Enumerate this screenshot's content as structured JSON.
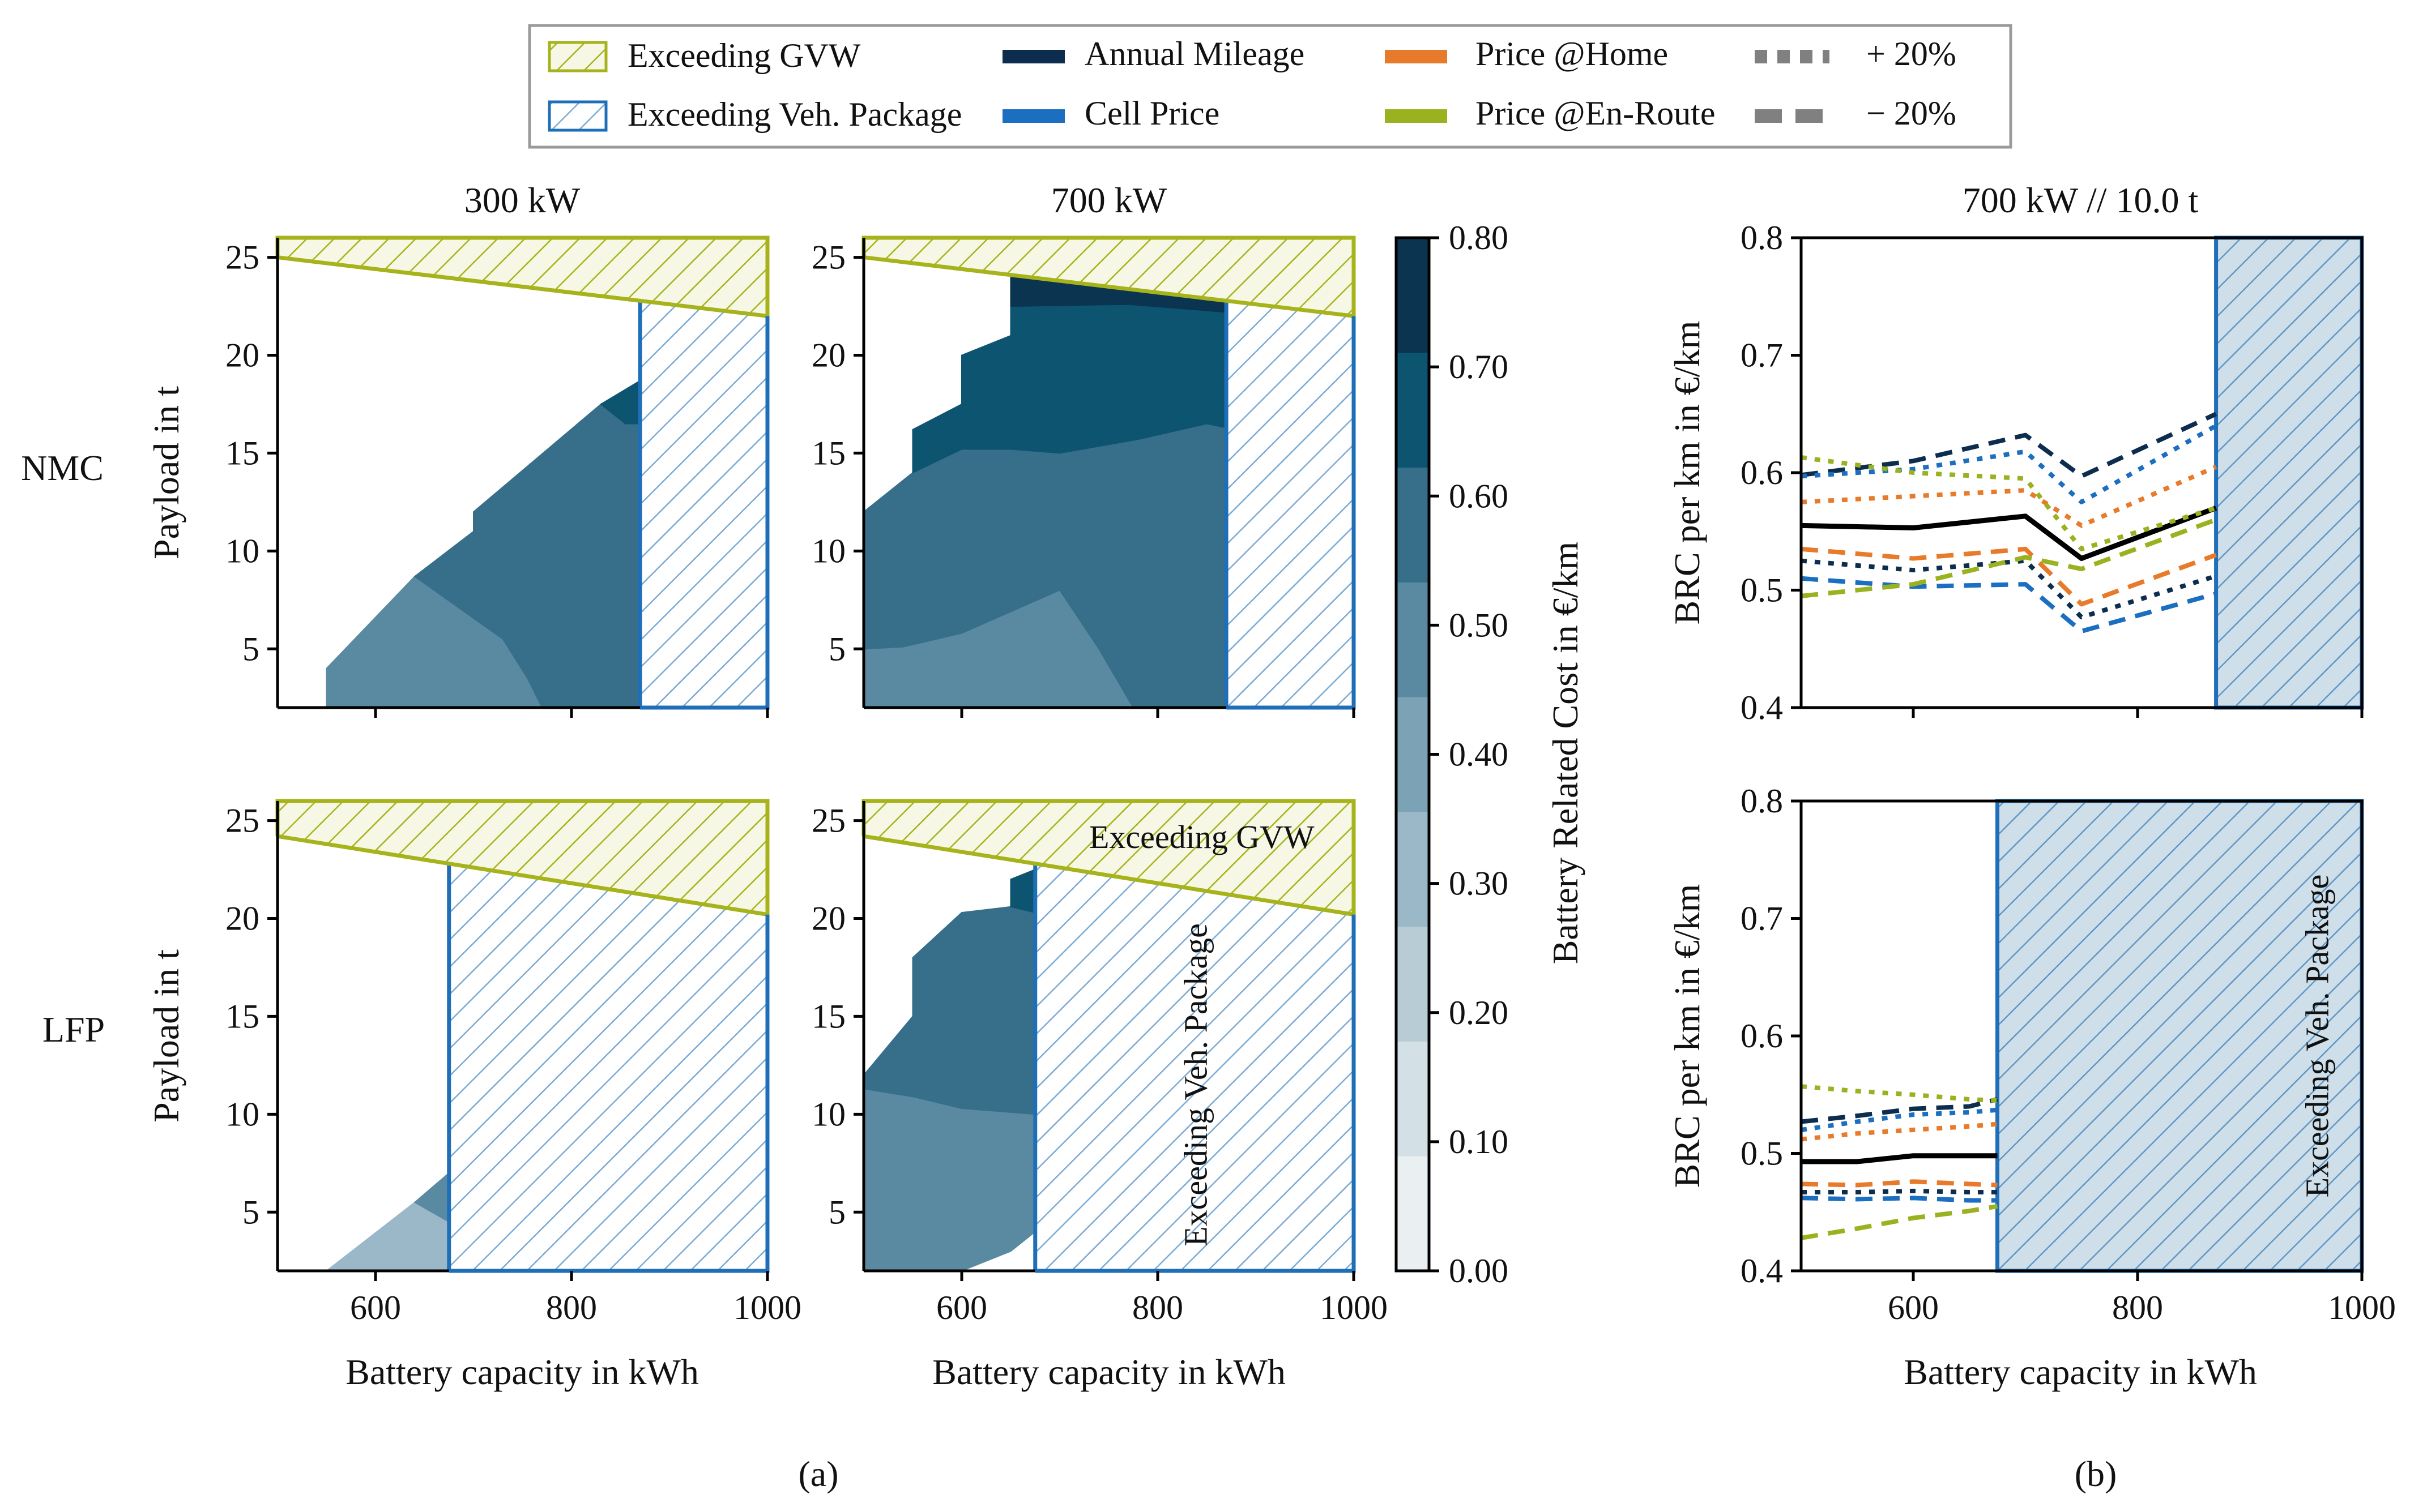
{
  "chart_data": {
    "type": "multi-panel contour + line",
    "legend": {
      "hatch_entries": [
        {
          "label": "Exceeding GVW",
          "color": "#a6b31b"
        },
        {
          "label": "Exceeding Veh. Package",
          "color": "#1f6fb8"
        }
      ],
      "color_entries": [
        {
          "label": "Annual Mileage",
          "color": "#0d2d4e"
        },
        {
          "label": "Cell Price",
          "color": "#1c6fc0"
        },
        {
          "label": "Price @Home",
          "color": "#e87a2b"
        },
        {
          "label": "Price @En-Route",
          "color": "#9ab21f"
        }
      ],
      "style_entries": [
        {
          "label": "+ 20%",
          "style": "dotted"
        },
        {
          "label": "− 20%",
          "style": "dashed"
        }
      ]
    },
    "row_labels": [
      "NMC",
      "LFP"
    ],
    "sublabels": [
      "(a)",
      "(b)"
    ],
    "contour_panels": [
      {
        "title": "300 kW",
        "chemistry": "NMC",
        "gvw_line_payload": [
          25.0,
          22.0
        ],
        "veh_package_limit_kwh": 870,
        "regions": [
          {
            "level": 0.45,
            "points": [
              [
                550,
                2
              ],
              [
                550,
                4
              ],
              [
                640,
                8.7
              ],
              [
                730,
                5.5
              ],
              [
                755,
                3.5
              ],
              [
                770,
                2
              ]
            ]
          },
          {
            "level": 0.55,
            "points": [
              [
                640,
                8.7
              ],
              [
                700,
                11
              ],
              [
                700,
                12
              ],
              [
                830,
                17.5
              ],
              [
                855,
                16.5
              ],
              [
                870,
                16.5
              ],
              [
                870,
                2
              ],
              [
                770,
                2
              ],
              [
                755,
                3.5
              ],
              [
                730,
                5.5
              ]
            ]
          },
          {
            "level": 0.65,
            "points": [
              [
                830,
                17.5
              ],
              [
                870,
                18.7
              ],
              [
                870,
                16.5
              ],
              [
                855,
                16.5
              ]
            ]
          }
        ]
      },
      {
        "title": "700 kW",
        "chemistry": "NMC",
        "gvw_line_payload": [
          25.0,
          22.0
        ],
        "veh_package_limit_kwh": 870,
        "regions": [
          {
            "level": 0.45,
            "points": [
              [
                500,
                2
              ],
              [
                500,
                5
              ],
              [
                540,
                5.1
              ],
              [
                600,
                5.8
              ],
              [
                700,
                8
              ],
              [
                740,
                5
              ],
              [
                775,
                2
              ]
            ]
          },
          {
            "level": 0.55,
            "points": [
              [
                500,
                5
              ],
              [
                500,
                12
              ],
              [
                550,
                14
              ],
              [
                600,
                15.2
              ],
              [
                650,
                15.2
              ],
              [
                700,
                15
              ],
              [
                780,
                15.7
              ],
              [
                850,
                16.5
              ],
              [
                870,
                16.3
              ],
              [
                870,
                2
              ],
              [
                775,
                2
              ],
              [
                740,
                5
              ],
              [
                700,
                8
              ],
              [
                600,
                5.8
              ],
              [
                540,
                5.1
              ]
            ]
          },
          {
            "level": 0.65,
            "points": [
              [
                550,
                14
              ],
              [
                550,
                16.2
              ],
              [
                600,
                17.5
              ],
              [
                600,
                20
              ],
              [
                650,
                21
              ],
              [
                650,
                22.5
              ],
              [
                770,
                22.6
              ],
              [
                870,
                22.2
              ],
              [
                870,
                16.3
              ],
              [
                850,
                16.5
              ],
              [
                780,
                15.7
              ],
              [
                700,
                15
              ],
              [
                650,
                15.2
              ],
              [
                600,
                15.2
              ]
            ]
          },
          {
            "level": 0.75,
            "points": [
              [
                650,
                22.5
              ],
              [
                650,
                24.1
              ],
              [
                870,
                23.8
              ],
              [
                870,
                22.2
              ],
              [
                770,
                22.6
              ]
            ]
          }
        ]
      },
      {
        "title": "",
        "chemistry": "LFP",
        "gvw_line_payload": [
          24.2,
          20.2
        ],
        "veh_package_limit_kwh": 675,
        "regions": [
          {
            "level": 0.35,
            "points": [
              [
                550,
                2
              ],
              [
                640,
                5.5
              ],
              [
                675,
                4.5
              ],
              [
                675,
                2
              ]
            ]
          },
          {
            "level": 0.45,
            "points": [
              [
                640,
                5.5
              ],
              [
                675,
                7
              ],
              [
                675,
                4.5
              ]
            ]
          }
        ]
      },
      {
        "title": "",
        "chemistry": "LFP",
        "gvw_line_payload": [
          24.2,
          20.2
        ],
        "veh_package_limit_kwh": 675,
        "annotation_gvw": "Exceeding GVW",
        "annotation_package": "Exceeding Veh. Package",
        "regions": [
          {
            "level": 0.45,
            "points": [
              [
                500,
                2
              ],
              [
                500,
                11.3
              ],
              [
                550,
                10.9
              ],
              [
                600,
                10.3
              ],
              [
                675,
                10
              ],
              [
                675,
                4
              ],
              [
                650,
                3
              ],
              [
                600,
                2
              ]
            ]
          },
          {
            "level": 0.55,
            "points": [
              [
                500,
                11.3
              ],
              [
                500,
                12
              ],
              [
                550,
                15
              ],
              [
                550,
                18
              ],
              [
                600,
                20.3
              ],
              [
                650,
                20.6
              ],
              [
                675,
                20.3
              ],
              [
                675,
                10
              ],
              [
                600,
                10.3
              ],
              [
                550,
                10.9
              ]
            ]
          },
          {
            "level": 0.65,
            "points": [
              [
                650,
                20.6
              ],
              [
                650,
                22
              ],
              [
                675,
                22.5
              ],
              [
                675,
                20.3
              ]
            ]
          }
        ]
      }
    ],
    "contour_axes": {
      "xlabel": "Battery capacity in kWh",
      "ylabel": "Payload in t",
      "xlim": [
        500,
        1000
      ],
      "ylim": [
        2,
        26
      ],
      "xticks": [
        600,
        800,
        1000
      ],
      "yticks": [
        5,
        10,
        15,
        20,
        25
      ]
    },
    "colorbar": {
      "label": "Battery Related Cost in €/km",
      "range": [
        0.0,
        0.8
      ],
      "ticks": [
        "0.00",
        "0.10",
        "0.20",
        "0.30",
        "0.40",
        "0.50",
        "0.60",
        "0.70",
        "0.80"
      ],
      "colors": [
        "#eaf0f1",
        "#d3e1e6",
        "#b8ccd6",
        "#9ab8c8",
        "#7ca2b6",
        "#5a8aa1",
        "#376f8b",
        "#0d5471",
        "#0a3450"
      ]
    },
    "line_panels_title": "700 kW // 10.0 t",
    "line_axes": {
      "xlabel": "Battery capacity in kWh",
      "ylabel": "BRC per km in €/km",
      "xlim": [
        500,
        1000
      ],
      "ylim": [
        0.4,
        0.8
      ],
      "xticks": [
        600,
        800,
        1000
      ],
      "yticks": [
        "0.4",
        "0.5",
        "0.6",
        "0.7",
        "0.8"
      ]
    },
    "line_panels": [
      {
        "chemistry": "NMC",
        "veh_package_limit_kwh": 870,
        "x": [
          500,
          600,
          700,
          750,
          870
        ],
        "series": [
          {
            "name": "Baseline",
            "color": "#000000",
            "style": "solid",
            "values": [
              0.555,
              0.553,
              0.563,
              0.527,
              0.57
            ]
          },
          {
            "name": "Annual Mileage − 20%",
            "color": "#0d2d4e",
            "style": "dashed",
            "values": [
              0.598,
              0.61,
              0.632,
              0.597,
              0.65
            ]
          },
          {
            "name": "Annual Mileage + 20%",
            "color": "#0d2d4e",
            "style": "dotted",
            "values": [
              0.525,
              0.517,
              0.525,
              0.477,
              0.512
            ]
          },
          {
            "name": "Cell Price + 20%",
            "color": "#1c6fc0",
            "style": "dotted",
            "values": [
              0.597,
              0.603,
              0.618,
              0.575,
              0.64
            ]
          },
          {
            "name": "Cell Price − 20%",
            "color": "#1c6fc0",
            "style": "dashed",
            "values": [
              0.51,
              0.503,
              0.505,
              0.465,
              0.497
            ]
          },
          {
            "name": "Price @Home + 20%",
            "color": "#e87a2b",
            "style": "dotted",
            "values": [
              0.575,
              0.58,
              0.585,
              0.555,
              0.605
            ]
          },
          {
            "name": "Price @Home − 20%",
            "color": "#e87a2b",
            "style": "dashed",
            "values": [
              0.535,
              0.527,
              0.535,
              0.488,
              0.53
            ]
          },
          {
            "name": "Price @En-Route + 20%",
            "color": "#9ab21f",
            "style": "dotted",
            "values": [
              0.613,
              0.6,
              0.595,
              0.535,
              0.57
            ]
          },
          {
            "name": "Price @En-Route − 20%",
            "color": "#9ab21f",
            "style": "dashed",
            "values": [
              0.495,
              0.505,
              0.528,
              0.518,
              0.56
            ]
          }
        ]
      },
      {
        "chemistry": "LFP",
        "veh_package_limit_kwh": 675,
        "annotation_package": "Exceeding Veh. Package",
        "x": [
          500,
          550,
          600,
          650,
          675
        ],
        "series": [
          {
            "name": "Baseline",
            "color": "#000000",
            "style": "solid",
            "values": [
              0.493,
              0.493,
              0.498,
              0.498,
              0.498
            ]
          },
          {
            "name": "Annual Mileage − 20%",
            "color": "#0d2d4e",
            "style": "dashed",
            "values": [
              0.527,
              0.532,
              0.538,
              0.54,
              0.546
            ]
          },
          {
            "name": "Annual Mileage + 20%",
            "color": "#0d2d4e",
            "style": "dotted",
            "values": [
              0.467,
              0.467,
              0.468,
              0.467,
              0.467
            ]
          },
          {
            "name": "Cell Price + 20%",
            "color": "#1c6fc0",
            "style": "dotted",
            "values": [
              0.52,
              0.527,
              0.533,
              0.535,
              0.537
            ]
          },
          {
            "name": "Cell Price − 20%",
            "color": "#1c6fc0",
            "style": "dashed",
            "values": [
              0.462,
              0.461,
              0.462,
              0.46,
              0.46
            ]
          },
          {
            "name": "Price @Home + 20%",
            "color": "#e87a2b",
            "style": "dotted",
            "values": [
              0.512,
              0.517,
              0.52,
              0.523,
              0.525
            ]
          },
          {
            "name": "Price @Home − 20%",
            "color": "#e87a2b",
            "style": "dashed",
            "values": [
              0.474,
              0.473,
              0.476,
              0.474,
              0.473
            ]
          },
          {
            "name": "Price @En-Route + 20%",
            "color": "#9ab21f",
            "style": "dotted",
            "values": [
              0.557,
              0.553,
              0.55,
              0.546,
              0.545
            ]
          },
          {
            "name": "Price @En-Route − 20%",
            "color": "#9ab21f",
            "style": "dashed",
            "values": [
              0.428,
              0.436,
              0.445,
              0.451,
              0.455
            ]
          }
        ]
      }
    ]
  }
}
